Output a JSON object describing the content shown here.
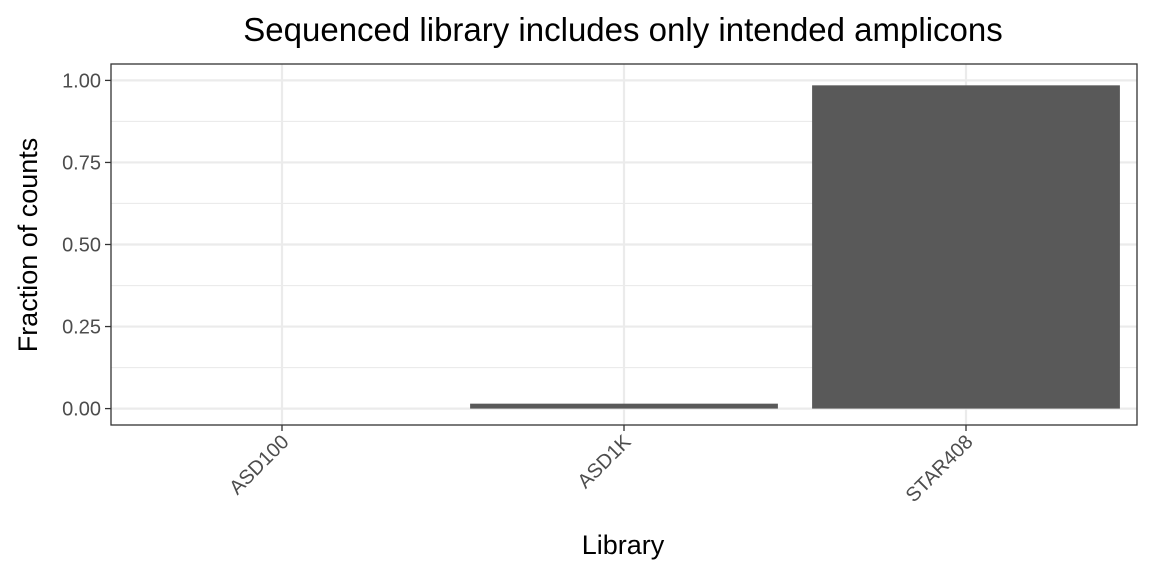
{
  "chart_data": {
    "type": "bar",
    "title": "Sequenced library includes only intended amplicons",
    "xlabel": "Library",
    "ylabel": "Fraction of counts",
    "categories": [
      "ASD100",
      "ASD1K",
      "STAR408"
    ],
    "values": [
      0.0,
      0.015,
      0.985
    ],
    "ylim": [
      -0.05,
      1.05
    ],
    "yticks": [
      0.0,
      0.25,
      0.5,
      0.75,
      1.0
    ],
    "ytick_labels": [
      "0.00",
      "0.25",
      "0.50",
      "0.75",
      "1.00"
    ],
    "grid": true,
    "legend": "none",
    "x_tick_rotation_deg": 45,
    "colors": {
      "bar": "#595959",
      "panel_background": "#ffffff",
      "grid": "#ebebeb",
      "panel_border": "#333333",
      "tick_text": "#4d4d4d",
      "title_text": "#000000"
    }
  }
}
